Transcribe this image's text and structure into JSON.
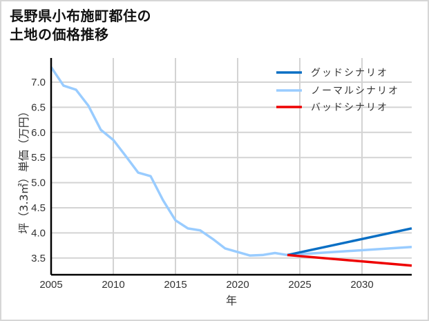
{
  "chart_data": {
    "type": "line",
    "title": "長野県小布施町都住の土地の価格推移",
    "title_lines": [
      "長野県小布施町都住の",
      "土地の価格推移"
    ],
    "xlabel": "年",
    "ylabel": "坪（3.3㎡）単価（万円）",
    "xlim": [
      2005,
      2034
    ],
    "ylim": [
      3.15,
      7.45
    ],
    "x_ticks": [
      2005,
      2010,
      2015,
      2020,
      2025,
      2030
    ],
    "y_ticks": [
      3.5,
      4.0,
      4.5,
      5.0,
      5.5,
      6.0,
      6.5,
      7.0
    ],
    "y_tick_labels": [
      "3.5",
      "4.0",
      "4.5",
      "5.0",
      "5.5",
      "6.0",
      "6.5",
      "7.0"
    ],
    "grid": true,
    "legend_position": "upper right",
    "series": [
      {
        "name": "グッドシナリオ",
        "color": "#0a6fc4",
        "x": [
          2024,
          2034
        ],
        "values": [
          3.56,
          4.09
        ]
      },
      {
        "name": "ノーマルシナリオ",
        "color": "#99ccff",
        "x": [
          2005,
          2006,
          2007,
          2008,
          2009,
          2010,
          2011,
          2012,
          2013,
          2014,
          2015,
          2016,
          2017,
          2018,
          2019,
          2020,
          2021,
          2022,
          2023,
          2024,
          2034
        ],
        "values": [
          7.3,
          6.93,
          6.85,
          6.53,
          6.05,
          5.85,
          5.53,
          5.2,
          5.13,
          4.65,
          4.25,
          4.09,
          4.05,
          3.88,
          3.69,
          3.62,
          3.55,
          3.56,
          3.6,
          3.56,
          3.72
        ]
      },
      {
        "name": "バッドシナリオ",
        "color": "#ee0000",
        "x": [
          2024,
          2034
        ],
        "values": [
          3.56,
          3.35
        ]
      }
    ]
  }
}
